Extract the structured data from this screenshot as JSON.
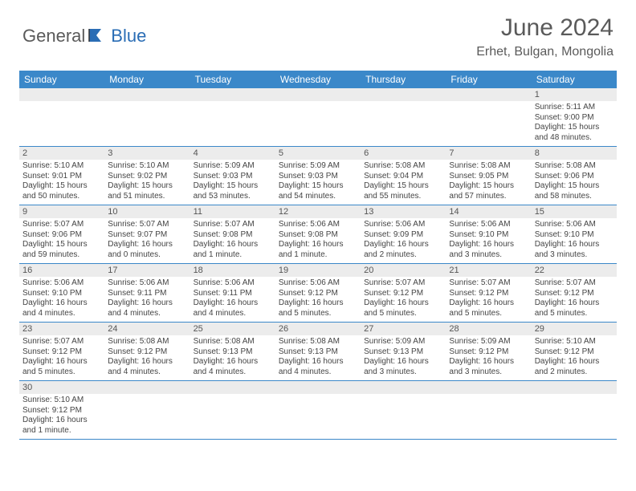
{
  "brand": {
    "part1": "General",
    "part2": "Blue"
  },
  "title": "June 2024",
  "location": "Erhet, Bulgan, Mongolia",
  "colors": {
    "header_bg": "#3b88c9",
    "header_text": "#ffffff",
    "daynum_bg": "#ececec",
    "rule": "#3b88c9",
    "title_color": "#5a5a5a",
    "brand_blue": "#2a6db5"
  },
  "weekdays": [
    "Sunday",
    "Monday",
    "Tuesday",
    "Wednesday",
    "Thursday",
    "Friday",
    "Saturday"
  ],
  "weeks": [
    [
      null,
      null,
      null,
      null,
      null,
      null,
      {
        "n": "1",
        "sr": "Sunrise: 5:11 AM",
        "ss": "Sunset: 9:00 PM",
        "dl": "Daylight: 15 hours and 48 minutes."
      }
    ],
    [
      {
        "n": "2",
        "sr": "Sunrise: 5:10 AM",
        "ss": "Sunset: 9:01 PM",
        "dl": "Daylight: 15 hours and 50 minutes."
      },
      {
        "n": "3",
        "sr": "Sunrise: 5:10 AM",
        "ss": "Sunset: 9:02 PM",
        "dl": "Daylight: 15 hours and 51 minutes."
      },
      {
        "n": "4",
        "sr": "Sunrise: 5:09 AM",
        "ss": "Sunset: 9:03 PM",
        "dl": "Daylight: 15 hours and 53 minutes."
      },
      {
        "n": "5",
        "sr": "Sunrise: 5:09 AM",
        "ss": "Sunset: 9:03 PM",
        "dl": "Daylight: 15 hours and 54 minutes."
      },
      {
        "n": "6",
        "sr": "Sunrise: 5:08 AM",
        "ss": "Sunset: 9:04 PM",
        "dl": "Daylight: 15 hours and 55 minutes."
      },
      {
        "n": "7",
        "sr": "Sunrise: 5:08 AM",
        "ss": "Sunset: 9:05 PM",
        "dl": "Daylight: 15 hours and 57 minutes."
      },
      {
        "n": "8",
        "sr": "Sunrise: 5:08 AM",
        "ss": "Sunset: 9:06 PM",
        "dl": "Daylight: 15 hours and 58 minutes."
      }
    ],
    [
      {
        "n": "9",
        "sr": "Sunrise: 5:07 AM",
        "ss": "Sunset: 9:06 PM",
        "dl": "Daylight: 15 hours and 59 minutes."
      },
      {
        "n": "10",
        "sr": "Sunrise: 5:07 AM",
        "ss": "Sunset: 9:07 PM",
        "dl": "Daylight: 16 hours and 0 minutes."
      },
      {
        "n": "11",
        "sr": "Sunrise: 5:07 AM",
        "ss": "Sunset: 9:08 PM",
        "dl": "Daylight: 16 hours and 1 minute."
      },
      {
        "n": "12",
        "sr": "Sunrise: 5:06 AM",
        "ss": "Sunset: 9:08 PM",
        "dl": "Daylight: 16 hours and 1 minute."
      },
      {
        "n": "13",
        "sr": "Sunrise: 5:06 AM",
        "ss": "Sunset: 9:09 PM",
        "dl": "Daylight: 16 hours and 2 minutes."
      },
      {
        "n": "14",
        "sr": "Sunrise: 5:06 AM",
        "ss": "Sunset: 9:10 PM",
        "dl": "Daylight: 16 hours and 3 minutes."
      },
      {
        "n": "15",
        "sr": "Sunrise: 5:06 AM",
        "ss": "Sunset: 9:10 PM",
        "dl": "Daylight: 16 hours and 3 minutes."
      }
    ],
    [
      {
        "n": "16",
        "sr": "Sunrise: 5:06 AM",
        "ss": "Sunset: 9:10 PM",
        "dl": "Daylight: 16 hours and 4 minutes."
      },
      {
        "n": "17",
        "sr": "Sunrise: 5:06 AM",
        "ss": "Sunset: 9:11 PM",
        "dl": "Daylight: 16 hours and 4 minutes."
      },
      {
        "n": "18",
        "sr": "Sunrise: 5:06 AM",
        "ss": "Sunset: 9:11 PM",
        "dl": "Daylight: 16 hours and 4 minutes."
      },
      {
        "n": "19",
        "sr": "Sunrise: 5:06 AM",
        "ss": "Sunset: 9:12 PM",
        "dl": "Daylight: 16 hours and 5 minutes."
      },
      {
        "n": "20",
        "sr": "Sunrise: 5:07 AM",
        "ss": "Sunset: 9:12 PM",
        "dl": "Daylight: 16 hours and 5 minutes."
      },
      {
        "n": "21",
        "sr": "Sunrise: 5:07 AM",
        "ss": "Sunset: 9:12 PM",
        "dl": "Daylight: 16 hours and 5 minutes."
      },
      {
        "n": "22",
        "sr": "Sunrise: 5:07 AM",
        "ss": "Sunset: 9:12 PM",
        "dl": "Daylight: 16 hours and 5 minutes."
      }
    ],
    [
      {
        "n": "23",
        "sr": "Sunrise: 5:07 AM",
        "ss": "Sunset: 9:12 PM",
        "dl": "Daylight: 16 hours and 5 minutes."
      },
      {
        "n": "24",
        "sr": "Sunrise: 5:08 AM",
        "ss": "Sunset: 9:12 PM",
        "dl": "Daylight: 16 hours and 4 minutes."
      },
      {
        "n": "25",
        "sr": "Sunrise: 5:08 AM",
        "ss": "Sunset: 9:13 PM",
        "dl": "Daylight: 16 hours and 4 minutes."
      },
      {
        "n": "26",
        "sr": "Sunrise: 5:08 AM",
        "ss": "Sunset: 9:13 PM",
        "dl": "Daylight: 16 hours and 4 minutes."
      },
      {
        "n": "27",
        "sr": "Sunrise: 5:09 AM",
        "ss": "Sunset: 9:13 PM",
        "dl": "Daylight: 16 hours and 3 minutes."
      },
      {
        "n": "28",
        "sr": "Sunrise: 5:09 AM",
        "ss": "Sunset: 9:12 PM",
        "dl": "Daylight: 16 hours and 3 minutes."
      },
      {
        "n": "29",
        "sr": "Sunrise: 5:10 AM",
        "ss": "Sunset: 9:12 PM",
        "dl": "Daylight: 16 hours and 2 minutes."
      }
    ],
    [
      {
        "n": "30",
        "sr": "Sunrise: 5:10 AM",
        "ss": "Sunset: 9:12 PM",
        "dl": "Daylight: 16 hours and 1 minute."
      },
      null,
      null,
      null,
      null,
      null,
      null
    ]
  ]
}
